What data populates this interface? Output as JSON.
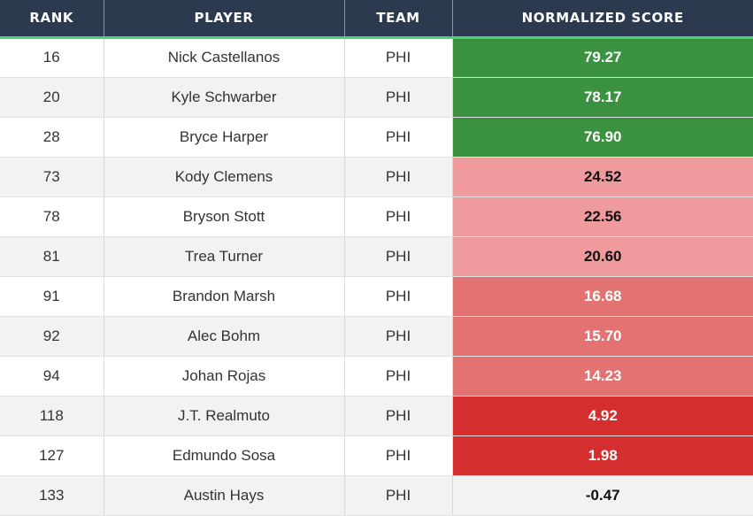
{
  "table": {
    "headers": [
      "RANK",
      "PLAYER",
      "TEAM",
      "NORMALIZED SCORE"
    ],
    "rows": [
      {
        "rank": "16",
        "player": "Nick Castellanos",
        "team": "PHI",
        "score": "79.27",
        "bg": "#3a913f",
        "fg": "#ffffff"
      },
      {
        "rank": "20",
        "player": "Kyle Schwarber",
        "team": "PHI",
        "score": "78.17",
        "bg": "#3a913f",
        "fg": "#ffffff"
      },
      {
        "rank": "28",
        "player": "Bryce Harper",
        "team": "PHI",
        "score": "76.90",
        "bg": "#3a913f",
        "fg": "#ffffff"
      },
      {
        "rank": "73",
        "player": "Kody Clemens",
        "team": "PHI",
        "score": "24.52",
        "bg": "#ef9a9c",
        "fg": "#111111"
      },
      {
        "rank": "78",
        "player": "Bryson Stott",
        "team": "PHI",
        "score": "22.56",
        "bg": "#ef9a9c",
        "fg": "#111111"
      },
      {
        "rank": "81",
        "player": "Trea Turner",
        "team": "PHI",
        "score": "20.60",
        "bg": "#ef9a9c",
        "fg": "#111111"
      },
      {
        "rank": "91",
        "player": "Brandon Marsh",
        "team": "PHI",
        "score": "16.68",
        "bg": "#e37272",
        "fg": "#ffffff"
      },
      {
        "rank": "92",
        "player": "Alec Bohm",
        "team": "PHI",
        "score": "15.70",
        "bg": "#e37272",
        "fg": "#ffffff"
      },
      {
        "rank": "94",
        "player": "Johan Rojas",
        "team": "PHI",
        "score": "14.23",
        "bg": "#e37272",
        "fg": "#ffffff"
      },
      {
        "rank": "118",
        "player": "J.T. Realmuto",
        "team": "PHI",
        "score": "4.92",
        "bg": "#d42e2e",
        "fg": "#ffffff"
      },
      {
        "rank": "127",
        "player": "Edmundo Sosa",
        "team": "PHI",
        "score": "1.98",
        "bg": "#d42e2e",
        "fg": "#ffffff"
      },
      {
        "rank": "133",
        "player": "Austin Hays",
        "team": "PHI",
        "score": "-0.47",
        "bg": "",
        "fg": "#111111"
      }
    ]
  }
}
